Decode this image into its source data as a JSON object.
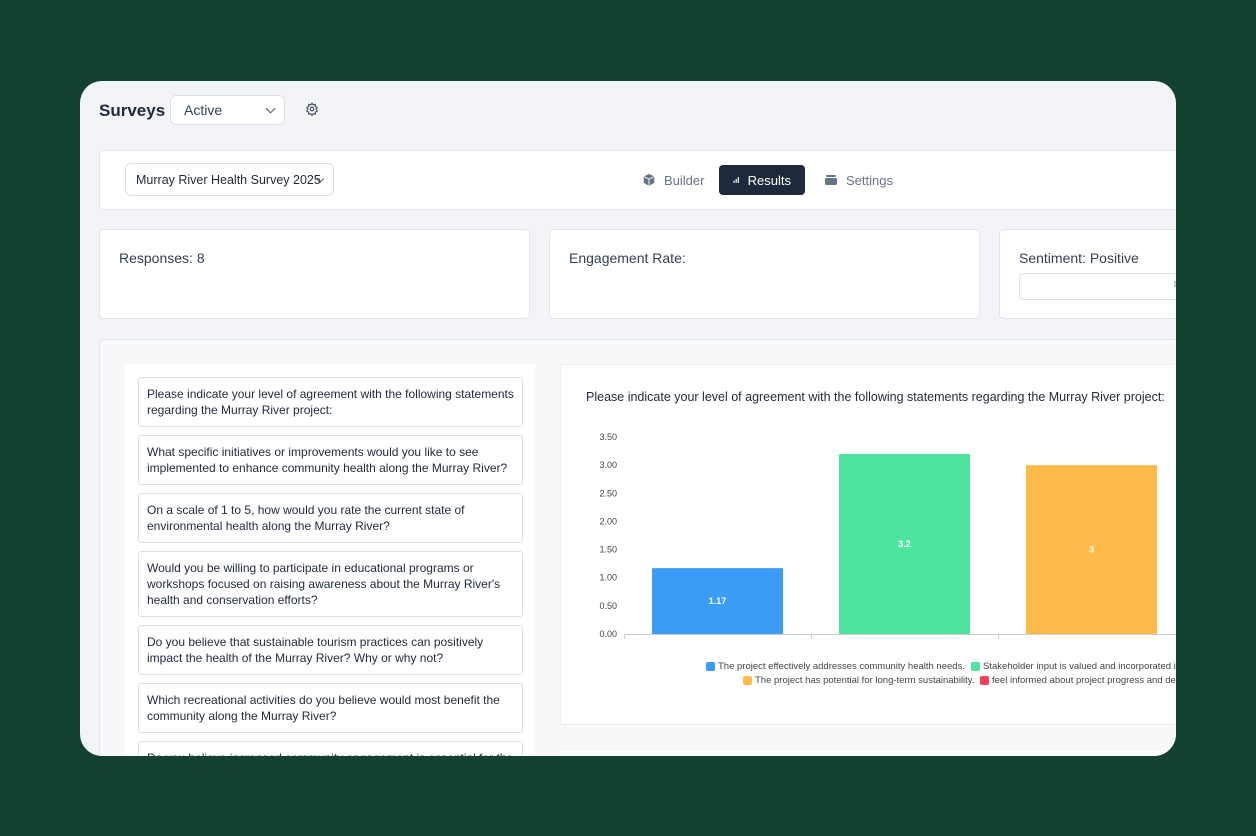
{
  "header": {
    "title": "Surveys",
    "status_filter": "Active"
  },
  "toolbar": {
    "survey_select": "Murray River Health Survey 2025",
    "tabs": [
      {
        "label": "Builder",
        "icon": "cube-icon"
      },
      {
        "label": "Results",
        "icon": "bar-chart-icon",
        "active": true
      },
      {
        "label": "Settings",
        "icon": "stack-icon"
      }
    ]
  },
  "stats": {
    "responses": "Responses: 8",
    "engagement": "Engagement Rate:",
    "sentiment": "Sentiment: Positive"
  },
  "questions": [
    "Please indicate your level of agreement with the following statements regarding the Murray River project:",
    "What specific initiatives or improvements would you like to see implemented to enhance community health along the Murray River?",
    "On a scale of 1 to 5, how would you rate the current state of environmental health along the Murray River?",
    "Would you be willing to participate in educational programs or workshops focused on raising awareness about the Murray River's health and conservation efforts?",
    "Do you believe that sustainable tourism practices can positively impact the health of the Murray River? Why or why not?",
    "Which recreational activities do you believe would most benefit the community along the Murray River?",
    "Do you believe increased community engagement is essential for the"
  ],
  "chart_data": {
    "type": "bar",
    "title": "Please indicate your level of agreement with the following statements regarding the Murray River project:",
    "ylim": [
      0,
      3.5
    ],
    "yticks": [
      "0.00",
      "0.50",
      "1.00",
      "1.50",
      "2.00",
      "2.50",
      "3.00",
      "3.50"
    ],
    "series": [
      {
        "name": "The project effectively addresses community health needs.",
        "value": 1.17,
        "label": "1.17",
        "color": "#3b9cf5"
      },
      {
        "name": "Stakeholder input is valued and incorporated in",
        "value": 3.2,
        "label": "3.2",
        "color": "#4fe3a0"
      },
      {
        "name": "The project has potential for long-term sustainability.",
        "value": 3,
        "label": "3",
        "color": "#ffbb4a"
      },
      {
        "name": "feel informed about project progress and dev",
        "color": "#f43f5e"
      }
    ],
    "legend": "bottom"
  }
}
